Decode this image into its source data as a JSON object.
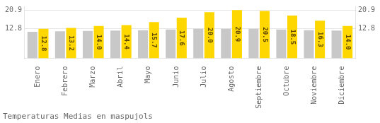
{
  "chart_data": {
    "type": "bar",
    "title": "Temperaturas Medias en maspujols",
    "categories": [
      "Enero",
      "Febrero",
      "Marzo",
      "Abril",
      "Mayo",
      "Junio",
      "Julio",
      "Agosto",
      "Septiembre",
      "Octubre",
      "Noviembre",
      "Diciembre"
    ],
    "series": [
      {
        "color": "#C8C8C8",
        "values": [
          11.5,
          11.7,
          11.9,
          12.0,
          12.2,
          12.5,
          12.8,
          12.8,
          12.8,
          12.5,
          12.2,
          12.0
        ]
      },
      {
        "color": "#FFD700",
        "values": [
          12.8,
          13.2,
          14.0,
          14.4,
          15.7,
          17.6,
          20.0,
          20.9,
          20.5,
          18.5,
          16.3,
          14.0
        ],
        "data_labels": true,
        "value_labels": [
          "12.8",
          "13.2",
          "14.0",
          "14.4",
          "15.7",
          "17.6",
          "20.0",
          "20.9",
          "20.5",
          "18.5",
          "16.3",
          "14.0"
        ]
      }
    ],
    "ylim": [
      0,
      22.5
    ],
    "yticks": [
      12.8,
      20.9
    ],
    "y2lim": [
      0,
      22.5
    ],
    "y2ticks": [
      12.8,
      20.9
    ],
    "grid": true
  }
}
